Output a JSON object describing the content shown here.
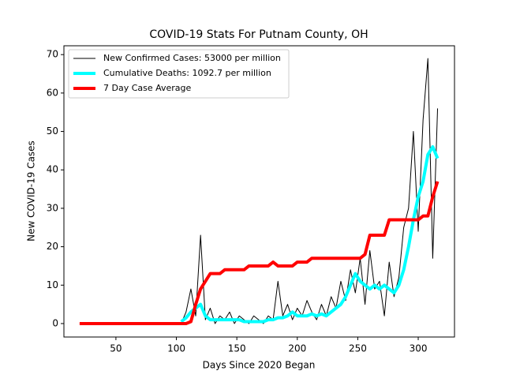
{
  "chart_data": {
    "type": "line",
    "title": "COVID-19 Stats For Putnam County, OH",
    "x_label": "Days Since 2020 Began",
    "y_label": "New COVID-19 Cases",
    "x": [
      20,
      24,
      28,
      32,
      36,
      40,
      44,
      48,
      52,
      56,
      60,
      64,
      68,
      72,
      76,
      80,
      84,
      88,
      92,
      96,
      100,
      104,
      108,
      112,
      116,
      120,
      124,
      128,
      132,
      136,
      140,
      144,
      148,
      152,
      156,
      160,
      164,
      168,
      172,
      176,
      180,
      184,
      188,
      192,
      196,
      200,
      204,
      208,
      212,
      216,
      220,
      224,
      228,
      232,
      236,
      240,
      244,
      248,
      252,
      256,
      260,
      264,
      268,
      272,
      276,
      280,
      284,
      288,
      292,
      296,
      300,
      304,
      308,
      312,
      316
    ],
    "series": [
      {
        "name": "New Confirmed Cases: 53000 per million",
        "color": "#000000",
        "width": 1,
        "values": [
          0,
          0,
          0,
          0,
          0,
          0,
          0,
          0,
          0,
          0,
          0,
          0,
          0,
          0,
          0,
          0,
          0,
          0,
          0,
          0,
          0,
          0,
          3,
          9,
          2,
          23,
          1,
          4,
          0,
          2,
          1,
          3,
          0,
          2,
          1,
          0,
          2,
          1,
          0,
          2,
          1,
          11,
          2,
          5,
          1,
          4,
          2,
          6,
          3,
          1,
          5,
          2,
          7,
          4,
          11,
          6,
          14,
          8,
          17,
          5,
          19,
          9,
          11,
          2,
          16,
          7,
          12,
          25,
          30,
          50,
          24,
          53,
          69,
          17,
          56
        ]
      },
      {
        "name": "Cumulative Deaths: 1092.7 per million",
        "color": "#00ffff",
        "width": 4,
        "values": [
          null,
          null,
          null,
          null,
          null,
          null,
          null,
          null,
          null,
          null,
          null,
          null,
          null,
          null,
          null,
          null,
          null,
          null,
          null,
          null,
          null,
          0.5,
          1.5,
          3,
          4,
          5,
          2,
          1,
          1,
          1,
          1,
          1,
          1,
          1,
          0.5,
          0.5,
          0.5,
          0.5,
          0.5,
          1,
          1,
          1.5,
          1.5,
          2,
          3,
          2,
          2,
          2,
          2.5,
          2,
          2.5,
          2,
          3,
          4,
          5,
          7,
          10,
          13,
          11,
          10,
          9,
          10,
          9,
          10,
          9,
          8,
          10,
          14,
          20,
          27,
          33,
          37,
          44,
          46,
          43
        ]
      },
      {
        "name": "7 Day Case Average",
        "color": "#ff0000",
        "width": 4,
        "values": [
          0,
          0,
          0,
          0,
          0,
          0,
          0,
          0,
          0,
          0,
          0,
          0,
          0,
          0,
          0,
          0,
          0,
          0,
          0,
          0,
          0,
          0,
          0,
          0.5,
          5,
          9,
          11,
          13,
          13,
          13,
          14,
          14,
          14,
          14,
          14,
          15,
          15,
          15,
          15,
          15,
          16,
          15,
          15,
          15,
          15,
          16,
          16,
          16,
          17,
          17,
          17,
          17,
          17,
          17,
          17,
          17,
          17,
          17,
          17,
          18,
          23,
          23,
          23,
          23,
          27,
          27,
          27,
          27,
          27,
          27,
          27,
          28,
          28,
          33,
          37
        ]
      }
    ],
    "xlim": [
      7,
      330
    ],
    "ylim": [
      -3.5,
      72.3
    ],
    "xticks": [
      50,
      100,
      150,
      200,
      250,
      300
    ],
    "yticks": [
      0,
      10,
      20,
      30,
      40,
      50,
      60,
      70
    ],
    "grid": false,
    "legend": "upper left"
  }
}
